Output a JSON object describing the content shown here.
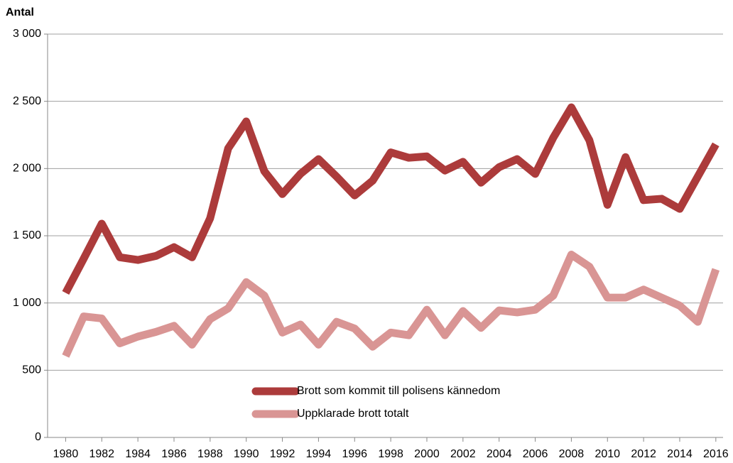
{
  "chart_data": {
    "type": "line",
    "y_label": "Antal",
    "x": [
      1980,
      1981,
      1982,
      1983,
      1984,
      1985,
      1986,
      1987,
      1988,
      1989,
      1990,
      1991,
      1992,
      1993,
      1994,
      1995,
      1996,
      1997,
      1998,
      1999,
      2000,
      2001,
      2002,
      2003,
      2004,
      2005,
      2006,
      2007,
      2008,
      2009,
      2010,
      2011,
      2012,
      2013,
      2014,
      2015,
      2016
    ],
    "series": [
      {
        "name": "Brott som kommit till polisens kännedom",
        "color": "#ac3b3b",
        "values": [
          1075,
          1330,
          1590,
          1340,
          1320,
          1350,
          1415,
          1340,
          1630,
          2150,
          2350,
          1980,
          1810,
          1960,
          2070,
          1940,
          1800,
          1910,
          2120,
          2080,
          2090,
          1985,
          2050,
          1895,
          2010,
          2070,
          1960,
          2230,
          2455,
          2210,
          1730,
          2085,
          1765,
          1775,
          1700,
          1940,
          2180
        ]
      },
      {
        "name": "Uppklarade brott totalt",
        "color": "#d99594",
        "values": [
          605,
          900,
          885,
          700,
          750,
          785,
          830,
          690,
          880,
          960,
          1155,
          1055,
          780,
          840,
          690,
          860,
          810,
          675,
          780,
          760,
          950,
          760,
          940,
          815,
          945,
          930,
          950,
          1055,
          1360,
          1270,
          1040,
          1040,
          1100,
          1040,
          980,
          860,
          1250
        ]
      }
    ],
    "xlim": [
      1979,
      2016.4
    ],
    "xticks": [
      1980,
      1982,
      1984,
      1986,
      1988,
      1990,
      1992,
      1994,
      1996,
      1998,
      2000,
      2002,
      2004,
      2006,
      2008,
      2010,
      2012,
      2014,
      2016
    ],
    "ylim": [
      0,
      3000
    ],
    "yticks": [
      {
        "value": 0,
        "label": "0"
      },
      {
        "value": 500,
        "label": "500"
      },
      {
        "value": 1000,
        "label": "1 000"
      },
      {
        "value": 1500,
        "label": "1 500"
      },
      {
        "value": 2000,
        "label": "2 000"
      },
      {
        "value": 2500,
        "label": "2 500"
      },
      {
        "value": 3000,
        "label": "3 000"
      }
    ],
    "grid": true
  }
}
